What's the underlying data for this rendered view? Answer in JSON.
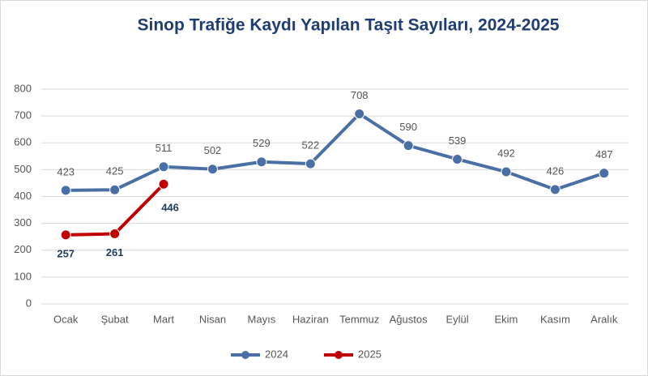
{
  "chart_data": {
    "type": "line",
    "title": "Sinop Trafiğe Kaydı Yapılan Taşıt Sayıları, 2024-2025",
    "categories": [
      "Ocak",
      "Şubat",
      "Mart",
      "Nisan",
      "Mayıs",
      "Haziran",
      "Temmuz",
      "Ağustos",
      "Eylül",
      "Ekim",
      "Kasım",
      "Aralık"
    ],
    "series": [
      {
        "name": "2024",
        "color": "#4a6fa5",
        "values": [
          423,
          425,
          511,
          502,
          529,
          522,
          708,
          590,
          539,
          492,
          426,
          487
        ]
      },
      {
        "name": "2025",
        "color": "#c00000",
        "values": [
          257,
          261,
          446,
          null,
          null,
          null,
          null,
          null,
          null,
          null,
          null,
          null
        ]
      }
    ],
    "ylim": [
      0,
      800
    ],
    "yticks": [
      0,
      100,
      200,
      300,
      400,
      500,
      600,
      700,
      800
    ],
    "grid": true,
    "legend": "bottom"
  }
}
